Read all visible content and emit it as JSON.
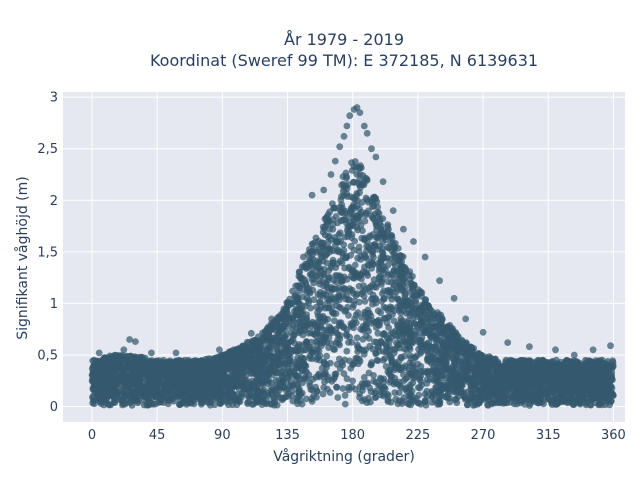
{
  "chart_data": {
    "type": "scatter",
    "title_line1": "År 1979 - 2019",
    "title_line2": "Koordinat (Sweref 99 TM): E 372185, N 6139631",
    "xlabel": "Vågriktning (grader)",
    "ylabel": "Signifikant våghöjd (m)",
    "xlim": [
      -20,
      368
    ],
    "ylim": [
      -0.15,
      3.05
    ],
    "x_ticks": [
      0,
      45,
      90,
      135,
      180,
      225,
      270,
      315,
      360
    ],
    "x_tick_labels": [
      "0",
      "45",
      "90",
      "135",
      "180",
      "225",
      "270",
      "315",
      "360"
    ],
    "y_ticks": [
      0,
      0.5,
      1,
      1.5,
      2,
      2.5,
      3
    ],
    "y_tick_labels": [
      "0",
      "0,5",
      "1",
      "1,5",
      "2",
      "2,5",
      "3"
    ],
    "grid": true,
    "colors": {
      "marker": "#34596e",
      "plot_bg": "#e5e8f0",
      "grid": "#ffffff",
      "text": "#2a3f5f"
    },
    "envelope": {
      "x": [
        0,
        15,
        30,
        45,
        60,
        75,
        90,
        105,
        120,
        130,
        140,
        150,
        160,
        170,
        175,
        180,
        185,
        190,
        200,
        210,
        220,
        230,
        240,
        250,
        260,
        270,
        285,
        300,
        315,
        330,
        345,
        360
      ],
      "y_max": [
        0.45,
        0.5,
        0.5,
        0.45,
        0.45,
        0.45,
        0.5,
        0.6,
        0.75,
        0.9,
        1.2,
        1.55,
        1.8,
        2.1,
        2.3,
        2.4,
        2.35,
        2.2,
        1.9,
        1.6,
        1.3,
        1.05,
        0.9,
        0.75,
        0.6,
        0.5,
        0.45,
        0.45,
        0.45,
        0.45,
        0.45,
        0.45
      ]
    },
    "outliers": [
      {
        "x": 5,
        "y": 0.52
      },
      {
        "x": 22,
        "y": 0.55
      },
      {
        "x": 26,
        "y": 0.65
      },
      {
        "x": 30,
        "y": 0.63
      },
      {
        "x": 41,
        "y": 0.52
      },
      {
        "x": 58,
        "y": 0.52
      },
      {
        "x": 88,
        "y": 0.55
      },
      {
        "x": 110,
        "y": 0.71
      },
      {
        "x": 124,
        "y": 0.85
      },
      {
        "x": 146,
        "y": 1.45
      },
      {
        "x": 152,
        "y": 2.05
      },
      {
        "x": 160,
        "y": 2.1
      },
      {
        "x": 165,
        "y": 2.25
      },
      {
        "x": 168,
        "y": 2.38
      },
      {
        "x": 171,
        "y": 2.52
      },
      {
        "x": 174,
        "y": 2.62
      },
      {
        "x": 176,
        "y": 2.72
      },
      {
        "x": 178,
        "y": 2.82
      },
      {
        "x": 181,
        "y": 2.88
      },
      {
        "x": 183,
        "y": 2.9
      },
      {
        "x": 185,
        "y": 2.85
      },
      {
        "x": 188,
        "y": 2.72
      },
      {
        "x": 190,
        "y": 2.65
      },
      {
        "x": 193,
        "y": 2.5
      },
      {
        "x": 196,
        "y": 2.42
      },
      {
        "x": 201,
        "y": 2.18
      },
      {
        "x": 208,
        "y": 1.9
      },
      {
        "x": 215,
        "y": 1.72
      },
      {
        "x": 222,
        "y": 1.6
      },
      {
        "x": 230,
        "y": 1.45
      },
      {
        "x": 240,
        "y": 1.22
      },
      {
        "x": 250,
        "y": 1.05
      },
      {
        "x": 258,
        "y": 0.85
      },
      {
        "x": 270,
        "y": 0.72
      },
      {
        "x": 287,
        "y": 0.62
      },
      {
        "x": 302,
        "y": 0.58
      },
      {
        "x": 320,
        "y": 0.55
      },
      {
        "x": 333,
        "y": 0.5
      },
      {
        "x": 346,
        "y": 0.55
      },
      {
        "x": 358,
        "y": 0.59
      }
    ]
  }
}
